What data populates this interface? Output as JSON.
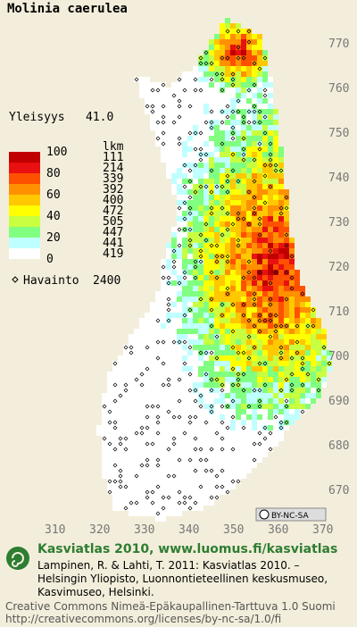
{
  "title": "Molinia caerulea",
  "summary": {
    "label": "Yleisyys",
    "value": "41.0"
  },
  "legend": {
    "scale_labels": [
      100,
      80,
      60,
      40,
      20,
      0
    ],
    "count_header": "lkm",
    "counts": [
      111,
      214,
      339,
      392,
      400,
      472,
      505,
      447,
      441,
      419
    ],
    "colors": [
      "#c00000",
      "#e81010",
      "#ff5000",
      "#ff9000",
      "#ffc800",
      "#ffff00",
      "#c8ff40",
      "#80ff80",
      "#c0ffff",
      "#ffffff"
    ]
  },
  "observations": {
    "label": "Havainto",
    "count": 2400
  },
  "y_axis_labels": [
    770,
    760,
    750,
    740,
    730,
    720,
    710,
    700,
    690,
    680,
    670
  ],
  "x_axis_labels": [
    310,
    320,
    330,
    340,
    350,
    360,
    370
  ],
  "license_badge": "BY-NC-SA",
  "footer": {
    "headline": "Kasviatlas 2010, www.luomus.fi/kasviatlas",
    "citation": [
      "Lampinen, R. & Lahti, T. 2011: Kasviatlas 2010. –",
      "Helsingin Yliopisto, Luonnontieteellinen keskusmuseo,",
      "Kasvimuseo, Helsinki."
    ],
    "license": [
      "Creative Commons Nimeä-Epäkaupallinen-Tarttuva 1.0 Suomi",
      "http://creativecommons.org/licenses/by-nc-sa/1.0/fi"
    ]
  }
}
